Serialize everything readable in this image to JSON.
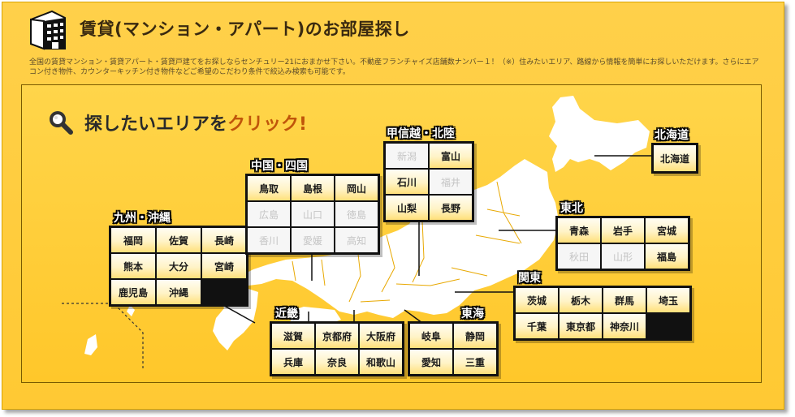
{
  "header": {
    "title": "賃貸(マンション・アパート)のお部屋探し",
    "description": "全国の賃貸マンション・賃貸アパート・賃貸戸建てをお探しならセンチュリー21におまかせ下さい。不動産フランチャイズ店舗数ナンバー１！（※）住みたいエリア、路線から情報を簡単にお探しいただけます。さらにエアコン付き物件、カウンターキッチン付き物件などご希望のこだわり条件で絞込み検索も可能です。"
  },
  "map": {
    "headline_main": "探したいエリアを",
    "headline_accent": "クリック",
    "headline_mark": "!"
  },
  "regions": [
    {
      "key": "kyushu",
      "label": "九州・沖縄",
      "cols": 3,
      "prefectures": [
        {
          "name": "福岡",
          "enabled": true
        },
        {
          "name": "佐賀",
          "enabled": true
        },
        {
          "name": "長崎",
          "enabled": true
        },
        {
          "name": "熊本",
          "enabled": true
        },
        {
          "name": "大分",
          "enabled": true
        },
        {
          "name": "宮崎",
          "enabled": true
        },
        {
          "name": "鹿児島",
          "enabled": true
        },
        {
          "name": "沖縄",
          "enabled": true
        }
      ]
    },
    {
      "key": "chugoku",
      "label": "中国・四国",
      "cols": 3,
      "prefectures": [
        {
          "name": "鳥取",
          "enabled": true
        },
        {
          "name": "島根",
          "enabled": true
        },
        {
          "name": "岡山",
          "enabled": true
        },
        {
          "name": "広島",
          "enabled": false
        },
        {
          "name": "山口",
          "enabled": false
        },
        {
          "name": "徳島",
          "enabled": false
        },
        {
          "name": "香川",
          "enabled": false
        },
        {
          "name": "愛媛",
          "enabled": false
        },
        {
          "name": "高知",
          "enabled": false
        }
      ]
    },
    {
      "key": "koshinetsu",
      "label": "甲信越・北陸",
      "cols": 2,
      "prefectures": [
        {
          "name": "新潟",
          "enabled": false
        },
        {
          "name": "富山",
          "enabled": true
        },
        {
          "name": "石川",
          "enabled": true
        },
        {
          "name": "福井",
          "enabled": false
        },
        {
          "name": "山梨",
          "enabled": true
        },
        {
          "name": "長野",
          "enabled": true
        }
      ]
    },
    {
      "key": "hokkaido",
      "label": "北海道",
      "cols": 1,
      "prefectures": [
        {
          "name": "北海道",
          "enabled": true
        }
      ]
    },
    {
      "key": "tohoku",
      "label": "東北",
      "cols": 3,
      "prefectures": [
        {
          "name": "青森",
          "enabled": true
        },
        {
          "name": "岩手",
          "enabled": true
        },
        {
          "name": "宮城",
          "enabled": true
        },
        {
          "name": "秋田",
          "enabled": false
        },
        {
          "name": "山形",
          "enabled": false
        },
        {
          "name": "福島",
          "enabled": true
        }
      ]
    },
    {
      "key": "kanto",
      "label": "関東",
      "cols": 4,
      "prefectures": [
        {
          "name": "茨城",
          "enabled": true
        },
        {
          "name": "栃木",
          "enabled": true
        },
        {
          "name": "群馬",
          "enabled": true
        },
        {
          "name": "埼玉",
          "enabled": true
        },
        {
          "name": "千葉",
          "enabled": true
        },
        {
          "name": "東京都",
          "enabled": true
        },
        {
          "name": "神奈川",
          "enabled": true
        }
      ]
    },
    {
      "key": "kinki",
      "label": "近畿",
      "cols": 3,
      "prefectures": [
        {
          "name": "滋賀",
          "enabled": true
        },
        {
          "name": "京都府",
          "enabled": true
        },
        {
          "name": "大阪府",
          "enabled": true
        },
        {
          "name": "兵庫",
          "enabled": true
        },
        {
          "name": "奈良",
          "enabled": true
        },
        {
          "name": "和歌山",
          "enabled": true
        }
      ]
    },
    {
      "key": "tokai",
      "label": "東海",
      "cols": 2,
      "prefectures": [
        {
          "name": "岐阜",
          "enabled": true
        },
        {
          "name": "静岡",
          "enabled": true
        },
        {
          "name": "愛知",
          "enabled": true
        },
        {
          "name": "三重",
          "enabled": true
        }
      ]
    }
  ]
}
